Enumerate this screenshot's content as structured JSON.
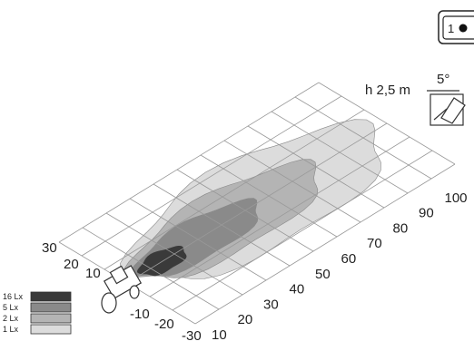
{
  "height_label": "h 2,5 m",
  "angle_label": "5°",
  "badge": "1",
  "lateral_labels": [
    "30",
    "20",
    "10",
    "-10",
    "-20",
    "-30"
  ],
  "distance_labels": [
    "10",
    "20",
    "30",
    "40",
    "50",
    "60",
    "70",
    "80",
    "90",
    "100"
  ],
  "legend": [
    "16 Lx",
    "5 Lx",
    "2 Lx",
    "1 Lx"
  ]
}
